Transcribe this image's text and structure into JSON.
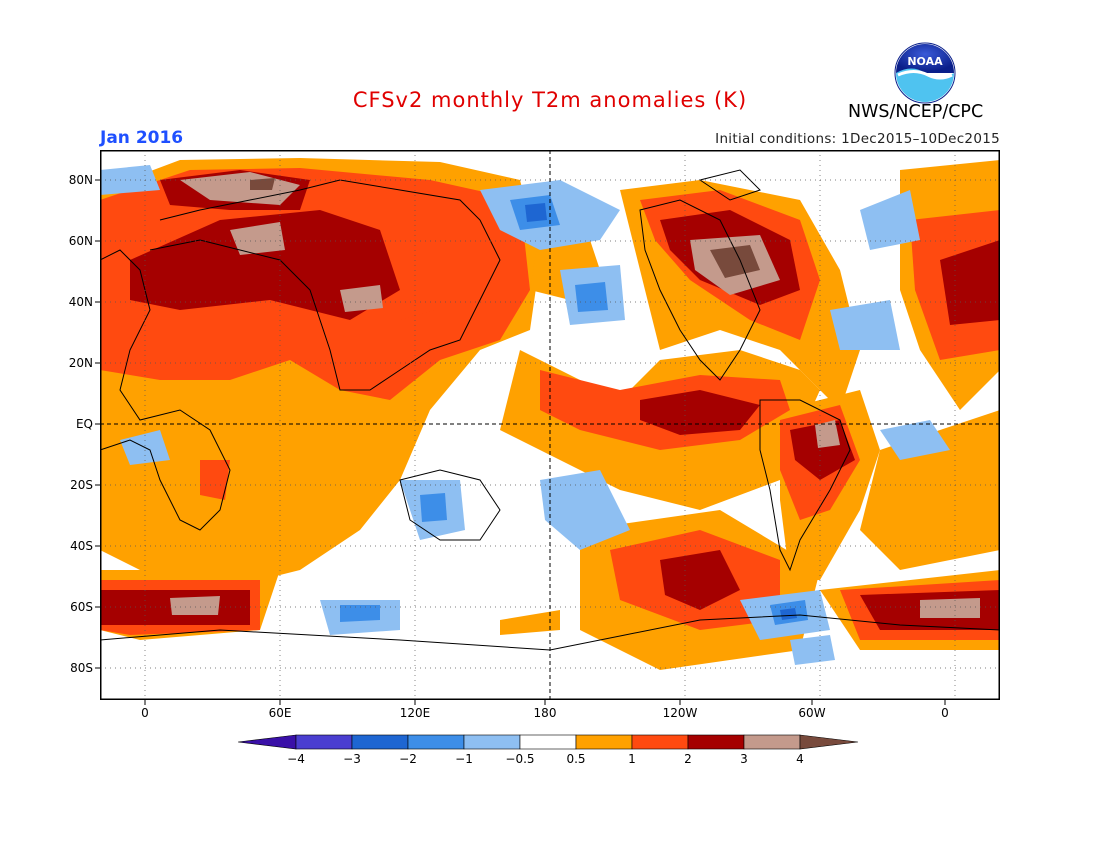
{
  "header": {
    "title": "CFSv2 monthly T2m anomalies (K)",
    "month": "Jan 2016",
    "initial_conditions": "Initial conditions: 1Dec2015–10Dec2015",
    "organization": "NWS/NCEP/CPC",
    "logo_text": "NOAA"
  },
  "map": {
    "lat_labels": [
      "80N",
      "60N",
      "40N",
      "20N",
      "EQ",
      "20S",
      "40S",
      "60S",
      "80S"
    ],
    "lon_labels": [
      "0",
      "60E",
      "120E",
      "180",
      "120W",
      "60W",
      "0"
    ]
  },
  "colorbar": {
    "labels": [
      "−4",
      "−3",
      "−2",
      "−1",
      "−0.5",
      "0.5",
      "1",
      "2",
      "3",
      "4"
    ],
    "colors": [
      "#3a10a8",
      "#4a3ed0",
      "#1e66d2",
      "#3d8ee8",
      "#8ebff2",
      "#ffffff",
      "#ffa100",
      "#ff4a10",
      "#a50000",
      "#c49a8c",
      "#784a3c"
    ]
  },
  "colors": {
    "warm1": "#ffa100",
    "warm2": "#ff4a10",
    "warm3": "#a50000",
    "warm4": "#c49a8c",
    "warm5": "#784a3c",
    "cool1": "#8ebff2",
    "cool2": "#3d8ee8",
    "cool3": "#1e66d2"
  }
}
